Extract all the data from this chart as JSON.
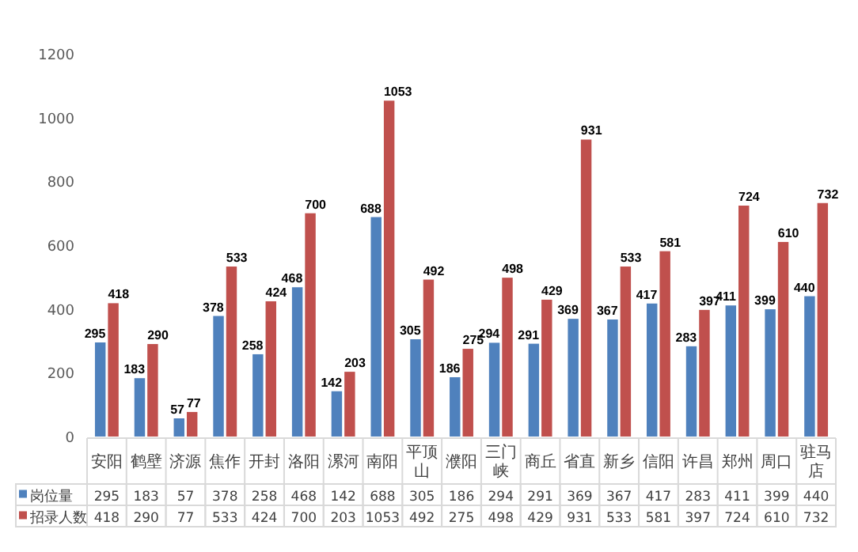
{
  "chart_data": [
    {
      "type": "bar",
      "categories": [
        "安阳",
        "鹤壁",
        "济源",
        "焦作",
        "开封",
        "洛阳",
        "漯河",
        "南阳",
        "平顶山",
        "濮阳",
        "三门峡",
        "商丘",
        "省直",
        "新乡",
        "信阳",
        "许昌",
        "郑州",
        "周口",
        "驻马店"
      ],
      "series": [
        {
          "name": "岗位量",
          "color": "#4f81bd",
          "values": [
            295,
            183,
            57,
            378,
            258,
            468,
            142,
            688,
            305,
            186,
            294,
            291,
            369,
            367,
            417,
            283,
            411,
            399,
            440
          ],
          "value_labels": [
            "295",
            "183",
            "57",
            "378",
            "258",
            "468",
            "142",
            "688",
            "305",
            "186",
            "294",
            "291",
            "369",
            "367",
            "417",
            "283",
            "411",
            "399",
            "440"
          ]
        },
        {
          "name": "招录人数",
          "color": "#c0504d",
          "values": [
            418,
            290,
            77,
            533,
            424,
            700,
            203,
            1053,
            492,
            275,
            498,
            429,
            931,
            533,
            581,
            397,
            724,
            610,
            732
          ],
          "value_labels": [
            "418",
            "290",
            "77",
            "533",
            "424",
            "700",
            "203",
            "1053",
            "492",
            "275",
            "498",
            "429",
            "931",
            "533",
            "581",
            "397",
            "724",
            "610",
            "732"
          ]
        }
      ],
      "ylim": [
        0,
        1200
      ],
      "yticks": [
        0,
        200,
        400,
        600,
        800,
        1000,
        1200
      ],
      "grid": false,
      "legend": "bottom left"
    },
    {
      "type": "other",
      "annotations": [
        "295",
        "183",
        "57",
        "378",
        "258",
        "468",
        "142",
        "688",
        "305",
        "186",
        "294",
        "291",
        "369",
        "367",
        "417",
        "283",
        "411",
        "399",
        "440",
        "418",
        "290",
        "77",
        "533",
        "424",
        "700",
        "203",
        "1053",
        "492",
        "275",
        "498",
        "429",
        "931",
        "533",
        "581",
        "397",
        "724",
        "610",
        "732"
      ]
    }
  ]
}
